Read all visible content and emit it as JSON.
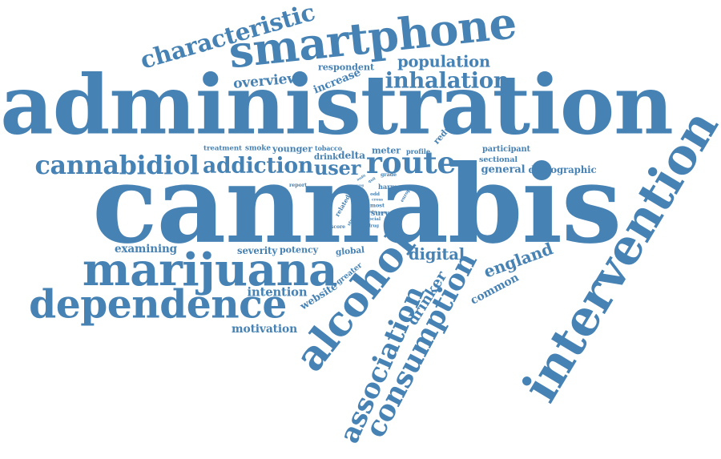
{
  "colors": {
    "word": "#4682b4",
    "background": "#ffffff"
  },
  "words": [
    "cannabis",
    "administration",
    "intervention",
    "smartphone",
    "marijuana",
    "dependence",
    "alcohol",
    "consumption",
    "association",
    "characteristic",
    "inhalation",
    "population",
    "cannabidiol",
    "addiction",
    "user",
    "route",
    "digital",
    "england",
    "common",
    "drinker",
    "intention",
    "motivation",
    "examining",
    "severity",
    "potency",
    "global",
    "greater",
    "website",
    "overview",
    "respondent",
    "increase",
    "reduce",
    "treatment",
    "smoke",
    "younger",
    "tobacco",
    "drink",
    "delta",
    "meter",
    "profile",
    "participant",
    "sectional",
    "general",
    "demographic",
    "harm",
    "odd",
    "cross",
    "most",
    "survey",
    "related",
    "quit",
    "grade",
    "europe",
    "report",
    "study",
    "score",
    "social",
    "drug",
    "data",
    "insure",
    "audit",
    "among"
  ]
}
